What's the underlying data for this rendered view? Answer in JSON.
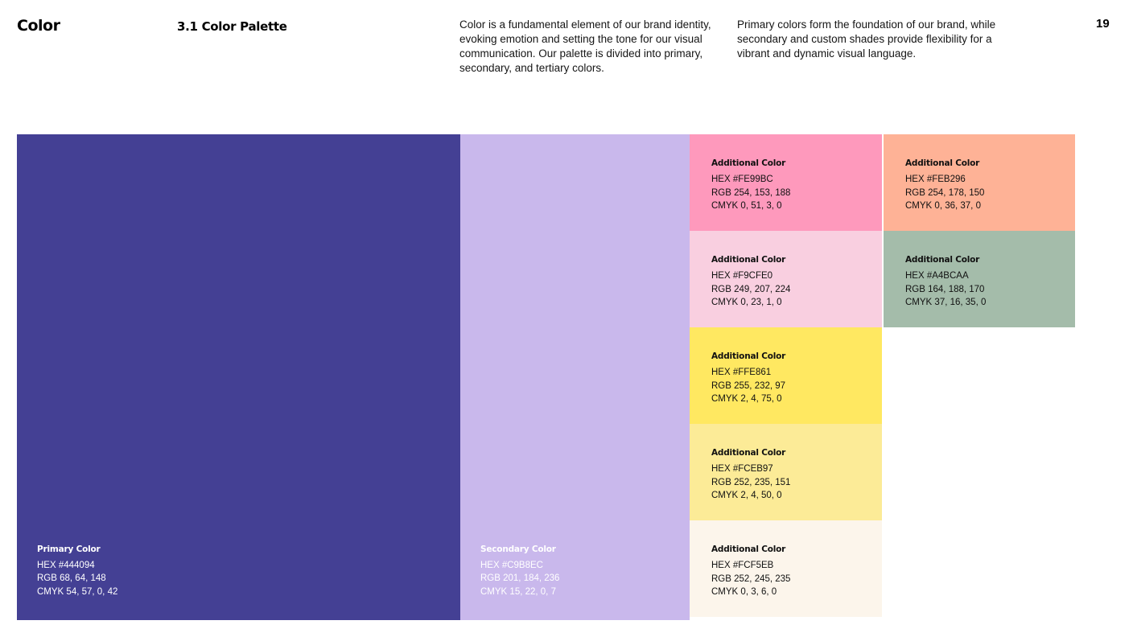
{
  "page": {
    "section_label": "Color",
    "section_title": "3.1 Color Palette",
    "intro_paragraph": "Color is a fundamental element of our brand identity, evoking emotion and setting the tone for our visual communication. Our palette is divided into primary, secondary, and tertiary colors.",
    "secondary_paragraph": "Primary colors form the foundation of our brand, while secondary and custom shades provide flexibility for a vibrant and dynamic visual language.",
    "page_number": "19"
  },
  "palette": {
    "primary": {
      "label": "Primary Color",
      "hex": "#444094",
      "hex_label": "HEX #444094",
      "rgb_label": "RGB 68, 64, 148",
      "cmyk_label": "CMYK 54, 57, 0, 42"
    },
    "secondary": {
      "label": "Secondary Color",
      "hex": "#C9B8EC",
      "hex_label": "HEX #C9B8EC",
      "rgb_label": "RGB 201, 184, 236",
      "cmyk_label": "CMYK 15, 22, 0, 7"
    },
    "additional": [
      {
        "label": "Additional Color",
        "hex": "#FE99BC",
        "hex_label": "HEX #FE99BC",
        "rgb_label": "RGB 254, 153, 188",
        "cmyk_label": "CMYK 0, 51, 3, 0"
      },
      {
        "label": "Additional Color",
        "hex": "#F9CFE0",
        "hex_label": "HEX #F9CFE0",
        "rgb_label": "RGB 249, 207, 224",
        "cmyk_label": "CMYK 0, 23, 1, 0"
      },
      {
        "label": "Additional Color",
        "hex": "#FFE861",
        "hex_label": "HEX #FFE861",
        "rgb_label": "RGB 255, 232, 97",
        "cmyk_label": "CMYK 2, 4, 75, 0"
      },
      {
        "label": "Additional Color",
        "hex": "#FCEB97",
        "hex_label": "HEX #FCEB97",
        "rgb_label": "RGB 252, 235, 151",
        "cmyk_label": "CMYK 2, 4, 50, 0"
      },
      {
        "label": "Additional Color",
        "hex": "#FCF5EB",
        "hex_label": "HEX #FCF5EB",
        "rgb_label": "RGB 252, 245, 235",
        "cmyk_label": "CMYK 0, 3, 6, 0"
      },
      {
        "label": "Additional Color",
        "hex": "#FEB296",
        "hex_label": "HEX #FEB296",
        "rgb_label": "RGB 254, 178, 150",
        "cmyk_label": "CMYK 0, 36, 37, 0"
      },
      {
        "label": "Additional Color",
        "hex": "#A4BCAA",
        "hex_label": "HEX #A4BCAA",
        "rgb_label": "RGB 164, 188, 170",
        "cmyk_label": "CMYK 37, 16, 35, 0"
      }
    ]
  }
}
